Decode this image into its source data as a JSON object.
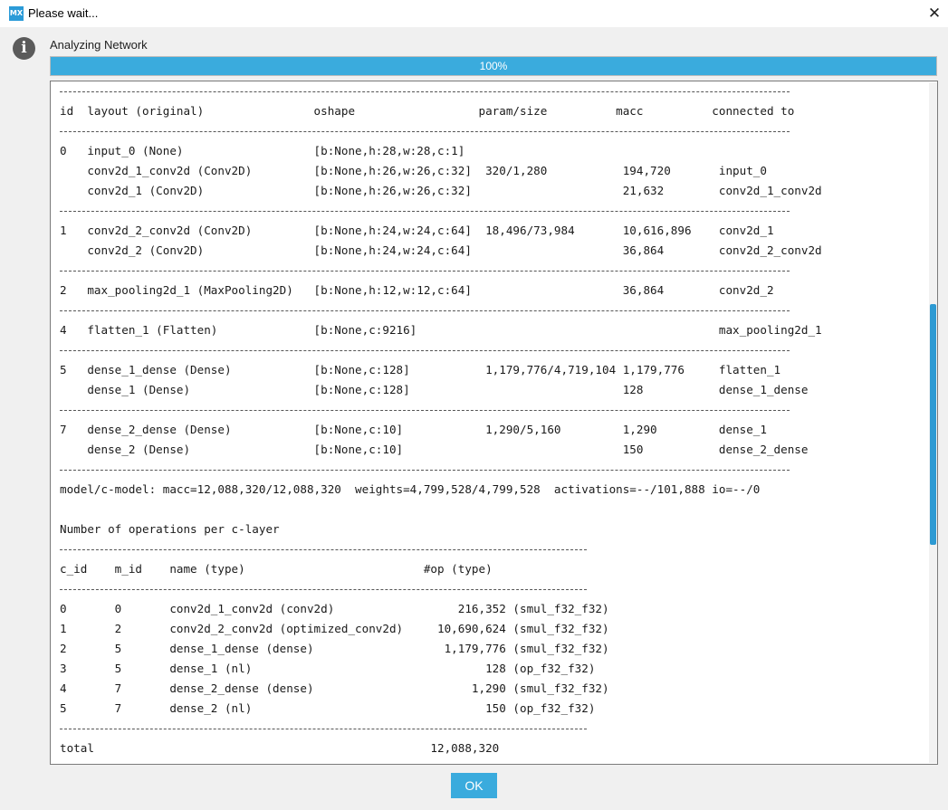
{
  "window": {
    "title": "Please wait...",
    "icon_text": "MX",
    "close_glyph": "✕"
  },
  "status": {
    "text": "Analyzing Network",
    "info_glyph": "i"
  },
  "progress": {
    "value": 1.0,
    "label": "100%"
  },
  "log": {
    "lines": [
      {
        "sep": "w1"
      },
      {
        "text": "id  layout (original)                oshape                  param/size          macc          connected to"
      },
      {
        "sep": "w1"
      },
      {
        "text": "0   input_0 (None)                   [b:None,h:28,w:28,c:1]"
      },
      {
        "text": "    conv2d_1_conv2d (Conv2D)         [b:None,h:26,w:26,c:32]  320/1,280           194,720       input_0"
      },
      {
        "text": "    conv2d_1 (Conv2D)                [b:None,h:26,w:26,c:32]                      21,632        conv2d_1_conv2d"
      },
      {
        "sep": "w1"
      },
      {
        "text": "1   conv2d_2_conv2d (Conv2D)         [b:None,h:24,w:24,c:64]  18,496/73,984       10,616,896    conv2d_1"
      },
      {
        "text": "    conv2d_2 (Conv2D)                [b:None,h:24,w:24,c:64]                      36,864        conv2d_2_conv2d"
      },
      {
        "sep": "w1"
      },
      {
        "text": "2   max_pooling2d_1 (MaxPooling2D)   [b:None,h:12,w:12,c:64]                      36,864        conv2d_2"
      },
      {
        "sep": "w1"
      },
      {
        "text": "4   flatten_1 (Flatten)              [b:None,c:9216]                                            max_pooling2d_1"
      },
      {
        "sep": "w1"
      },
      {
        "text": "5   dense_1_dense (Dense)            [b:None,c:128]           1,179,776/4,719,104 1,179,776     flatten_1"
      },
      {
        "text": "    dense_1 (Dense)                  [b:None,c:128]                               128           dense_1_dense"
      },
      {
        "sep": "w1"
      },
      {
        "text": "7   dense_2_dense (Dense)            [b:None,c:10]            1,290/5,160         1,290         dense_1"
      },
      {
        "text": "    dense_2 (Dense)                  [b:None,c:10]                                150           dense_2_dense"
      },
      {
        "sep": "w1"
      },
      {
        "text": "model/c-model: macc=12,088,320/12,088,320  weights=4,799,528/4,799,528  activations=--/101,888 io=--/0"
      },
      {
        "text": ""
      },
      {
        "text": "Number of operations per c-layer"
      },
      {
        "sep": "w2"
      },
      {
        "text": "c_id    m_id    name (type)                          #op (type)"
      },
      {
        "sep": "w2"
      },
      {
        "text": "0       0       conv2d_1_conv2d (conv2d)                  216,352 (smul_f32_f32)"
      },
      {
        "text": "1       2       conv2d_2_conv2d (optimized_conv2d)     10,690,624 (smul_f32_f32)"
      },
      {
        "text": "2       5       dense_1_dense (dense)                   1,179,776 (smul_f32_f32)"
      },
      {
        "text": "3       5       dense_1 (nl)                                  128 (op_f32_f32)"
      },
      {
        "text": "4       7       dense_2_dense (dense)                       1,290 (smul_f32_f32)"
      },
      {
        "text": "5       7       dense_2 (nl)                                  150 (op_f32_f32)"
      },
      {
        "sep": "w2"
      },
      {
        "text": "total                                                 12,088,320"
      }
    ]
  },
  "buttons": {
    "ok_label": "OK"
  },
  "colors": {
    "accent": "#3aabdd",
    "scrollbar": "#2d9ad3",
    "info_icon": "#5b5b5b"
  }
}
